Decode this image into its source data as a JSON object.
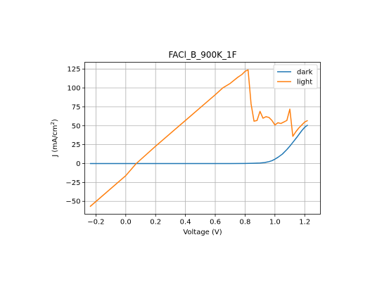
{
  "chart_data": {
    "type": "line",
    "title": "FACl_B_900K_1F",
    "xlabel": "Voltage (V)",
    "ylabel_main": "J (mA/cm",
    "ylabel_sup": "2",
    "ylabel_end": ")",
    "xlim": [
      -0.275,
      1.305
    ],
    "ylim": [
      -67,
      134
    ],
    "xticks": [
      -0.2,
      0.0,
      0.2,
      0.4,
      0.6,
      0.8,
      1.0,
      1.2
    ],
    "xtick_labels": [
      "−0.2",
      "0.0",
      "0.2",
      "0.4",
      "0.6",
      "0.8",
      "1.0",
      "1.2"
    ],
    "yticks": [
      -50,
      -25,
      0,
      25,
      50,
      75,
      100,
      125
    ],
    "ytick_labels": [
      "−50",
      "−25",
      "0",
      "25",
      "50",
      "75",
      "100",
      "125"
    ],
    "grid": true,
    "legend_position": "top-right",
    "series": [
      {
        "name": "dark",
        "color": "#1f77b4",
        "x": [
          -0.24,
          0.0,
          0.2,
          0.4,
          0.6,
          0.7,
          0.8,
          0.85,
          0.9,
          0.93,
          0.96,
          0.98,
          1.0,
          1.02,
          1.05,
          1.08,
          1.1,
          1.12,
          1.15,
          1.18,
          1.2,
          1.22
        ],
        "y": [
          0,
          0,
          0,
          0,
          0,
          0,
          0.1,
          0.3,
          0.7,
          1.3,
          2.5,
          3.8,
          5.8,
          8.2,
          12.5,
          18.5,
          23.0,
          28.0,
          35.5,
          43.5,
          48.0,
          51.0
        ]
      },
      {
        "name": "light",
        "color": "#ff7f0e",
        "x": [
          -0.24,
          0.0,
          0.07,
          0.2,
          0.4,
          0.5,
          0.6,
          0.65,
          0.7,
          0.75,
          0.78,
          0.8,
          0.82,
          0.84,
          0.86,
          0.88,
          0.9,
          0.92,
          0.94,
          0.96,
          0.98,
          1.0,
          1.02,
          1.04,
          1.06,
          1.08,
          1.1,
          1.12,
          1.14,
          1.16,
          1.18,
          1.2,
          1.22
        ],
        "y": [
          -57,
          -16,
          0,
          23,
          57,
          74,
          91,
          100,
          106,
          114,
          118,
          122,
          124,
          79,
          56,
          57,
          69,
          60,
          62,
          61,
          57,
          51,
          54,
          53,
          55,
          57,
          72,
          36,
          42,
          47,
          51,
          55,
          57
        ]
      }
    ]
  }
}
